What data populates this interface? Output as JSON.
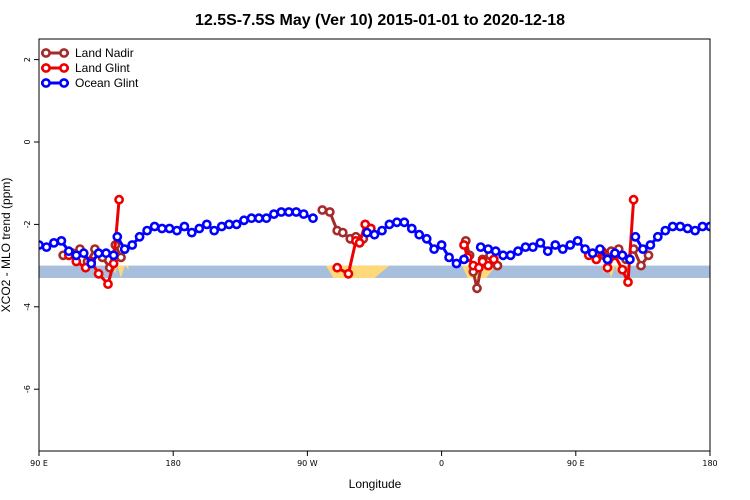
{
  "chart_data": {
    "type": "line",
    "title": "12.5S-7.5S May (Ver 10)   2015-01-01 to 2020-12-18",
    "xlabel": "Longitude",
    "ylabel": "XCO2 - MLO trend (ppm)",
    "xlim": [
      -90,
      270
    ],
    "ylim": [
      -7.5,
      2.5
    ],
    "x_ticks": [
      {
        "value": -90,
        "label": "90 E"
      },
      {
        "value": -18,
        "label": "180"
      },
      {
        "value": 54,
        "label": "90 W"
      },
      {
        "value": 126,
        "label": "0"
      },
      {
        "value": 198,
        "label": "90 E"
      },
      {
        "value": 270,
        "label": "180"
      }
    ],
    "y_ticks": [
      {
        "value": 2,
        "label": "2"
      },
      {
        "value": 0,
        "label": "0"
      },
      {
        "value": -2,
        "label": "-2"
      },
      {
        "value": -4,
        "label": "-4"
      },
      {
        "value": -6,
        "label": "-6"
      }
    ],
    "band": {
      "y_min": -3.3,
      "y_max": -3.0,
      "color": "#a7bedc"
    },
    "land_mask_color": "#ffd87a",
    "land_mask": [
      {
        "x": [
          -51,
          -49,
          -48,
          -46,
          -44,
          -42
        ],
        "y": [
          -3.0,
          -3.2,
          -3.0,
          -3.3,
          -3.0,
          -3.1
        ]
      },
      {
        "x": [
          64,
          68,
          76,
          80,
          90,
          98
        ],
        "y": [
          -3.0,
          -3.3,
          -3.3,
          -3.3,
          -3.3,
          -3.0
        ]
      },
      {
        "x": [
          137,
          140,
          145,
          150,
          155
        ],
        "y": [
          -3.0,
          -3.3,
          -3.3,
          -3.3,
          -3.0
        ]
      },
      {
        "x": [
          212,
          213,
          215,
          217,
          219,
          221,
          223,
          225
        ],
        "y": [
          -3.0,
          -3.2,
          -3.0,
          -3.3,
          -3.0,
          -3.2,
          -3.0,
          -3.3
        ]
      }
    ],
    "series": [
      {
        "name": "Land Nadir",
        "color": "#a52a2a",
        "segments": [
          {
            "x": [
              -77,
              -72,
              -68,
              -64,
              -60,
              -56,
              -52,
              -49,
              -46
            ],
            "y": [
              -2.75,
              -2.7,
              -2.6,
              -2.9,
              -2.6,
              -2.8,
              -3.05,
              -2.5,
              -2.8
            ]
          },
          {
            "x": [
              62,
              66,
              70,
              73,
              77,
              80,
              84,
              88
            ],
            "y": [
              -1.65,
              -1.7,
              -2.15,
              -2.2,
              -2.35,
              -2.3,
              -2.35,
              -2.1
            ]
          },
          {
            "x": [
              139,
              141,
              143,
              145,
              148,
              152,
              156
            ],
            "y": [
              -2.4,
              -2.75,
              -3.15,
              -3.55,
              -2.85,
              -2.75,
              -3.0
            ]
          },
          {
            "x": [
              209,
              213,
              217,
              221,
              225,
              229,
              233,
              237
            ],
            "y": [
              -2.75,
              -2.75,
              -2.65,
              -2.6,
              -2.85,
              -2.6,
              -3.0,
              -2.75
            ]
          }
        ]
      },
      {
        "name": "Land Glint",
        "color": "#ee0000",
        "segments": [
          {
            "x": [
              -74,
              -70,
              -65,
              -62,
              -58,
              -53,
              -50,
              -47
            ],
            "y": [
              -2.75,
              -2.9,
              -3.05,
              -2.9,
              -3.2,
              -3.45,
              -2.95,
              -1.4
            ]
          },
          {
            "x": [
              70,
              76,
              80,
              82,
              85,
              88
            ],
            "y": [
              -3.05,
              -3.2,
              -2.4,
              -2.45,
              -2.0,
              -2.1
            ]
          },
          {
            "x": [
              138,
              140,
              143,
              146,
              148,
              151,
              154
            ],
            "y": [
              -2.5,
              -2.8,
              -3.0,
              -3.05,
              -2.9,
              -3.0,
              -2.85
            ]
          },
          {
            "x": [
              205,
              209,
              212,
              215,
              219,
              223,
              226,
              229
            ],
            "y": [
              -2.75,
              -2.85,
              -2.65,
              -3.05,
              -2.75,
              -3.1,
              -3.4,
              -1.4
            ]
          }
        ]
      },
      {
        "name": "Ocean Glint",
        "color": "#0000ff",
        "segments": [
          {
            "x": [
              -90,
              -86,
              -82,
              -78,
              -74,
              -70,
              -66,
              -62,
              -58,
              -54,
              -50
            ],
            "y": [
              -2.5,
              -2.55,
              -2.45,
              -2.4,
              -2.65,
              -2.75,
              -2.7,
              -2.95,
              -2.7,
              -2.7,
              -2.75
            ]
          },
          {
            "x": [
              -48,
              -44,
              -40,
              -36,
              -32,
              -28,
              -24,
              -20,
              -16,
              -12,
              -8,
              -4,
              0,
              4,
              8,
              12,
              16,
              20,
              24,
              28,
              32,
              36,
              40,
              44,
              48,
              52,
              57
            ],
            "y": [
              -2.3,
              -2.6,
              -2.5,
              -2.3,
              -2.15,
              -2.05,
              -2.1,
              -2.1,
              -2.15,
              -2.05,
              -2.2,
              -2.1,
              -2.0,
              -2.15,
              -2.05,
              -2.0,
              -2.0,
              -1.9,
              -1.85,
              -1.85,
              -1.85,
              -1.75,
              -1.7,
              -1.7,
              -1.7,
              -1.75,
              -1.85
            ]
          },
          {
            "x": [
              86,
              90,
              94,
              98,
              102,
              106,
              110,
              114,
              118,
              122,
              126,
              130,
              134,
              138
            ],
            "y": [
              -2.2,
              -2.25,
              -2.15,
              -2.0,
              -1.95,
              -1.95,
              -2.1,
              -2.25,
              -2.35,
              -2.6,
              -2.5,
              -2.8,
              -2.95,
              -2.85
            ]
          },
          {
            "x": [
              147,
              151,
              155,
              159,
              163,
              167,
              171,
              175,
              179,
              183,
              187,
              191,
              195,
              199,
              203,
              207,
              211,
              215,
              219,
              223,
              227
            ],
            "y": [
              -2.55,
              -2.6,
              -2.65,
              -2.75,
              -2.75,
              -2.65,
              -2.55,
              -2.55,
              -2.45,
              -2.65,
              -2.5,
              -2.6,
              -2.5,
              -2.4,
              -2.6,
              -2.7,
              -2.6,
              -2.85,
              -2.7,
              -2.75,
              -2.85
            ]
          },
          {
            "x": [
              230,
              234,
              238,
              242,
              246,
              250,
              254,
              258,
              262,
              266,
              270
            ],
            "y": [
              -2.3,
              -2.6,
              -2.5,
              -2.3,
              -2.15,
              -2.05,
              -2.05,
              -2.1,
              -2.15,
              -2.05,
              -2.05
            ]
          }
        ]
      }
    ],
    "legend": {
      "placement": "top-left",
      "entries": [
        "Land Nadir",
        "Land Glint",
        "Ocean Glint"
      ]
    }
  }
}
